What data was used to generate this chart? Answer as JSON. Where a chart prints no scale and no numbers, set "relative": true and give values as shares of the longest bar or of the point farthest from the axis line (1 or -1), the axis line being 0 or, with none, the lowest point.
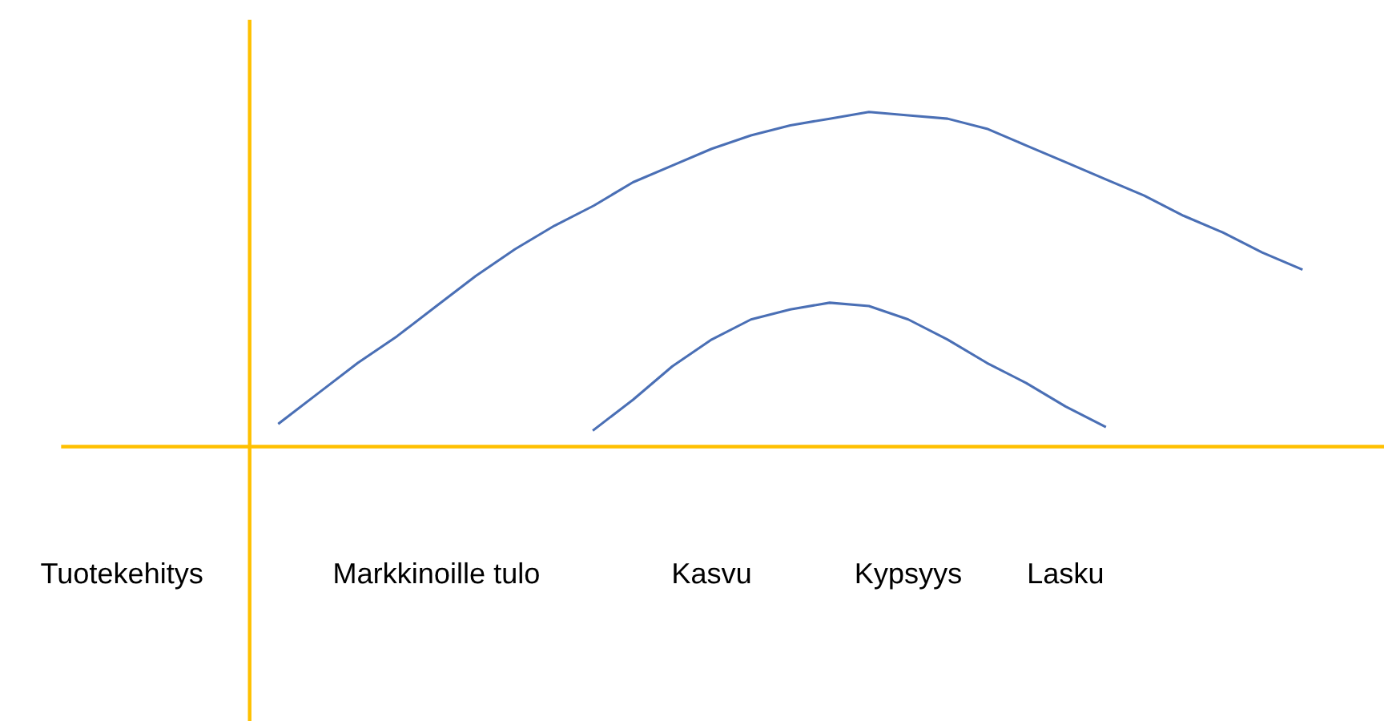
{
  "chart_data": {
    "type": "line",
    "relative": true,
    "categories": [
      "Tuotekehitys",
      null,
      null,
      null,
      null,
      null,
      null,
      null,
      "Markkinoille tulo",
      null,
      null,
      null,
      null,
      null,
      null,
      "Kasvu",
      null,
      null,
      null,
      null,
      "Kypsyys",
      null,
      null,
      null,
      "Lasku",
      null,
      null,
      null,
      null,
      null,
      null
    ],
    "grid": false,
    "marker": "none",
    "line_style": "solid",
    "series": [
      {
        "color": "#4a6fb5",
        "values": [
          null,
          null,
          null,
          null,
          0.07,
          0.16,
          0.25,
          0.33,
          0.42,
          0.51,
          0.59,
          0.66,
          0.72,
          0.79,
          0.84,
          0.89,
          0.93,
          0.96,
          0.98,
          1.0,
          0.99,
          0.98,
          0.95,
          0.9,
          0.85,
          0.8,
          0.75,
          0.69,
          0.64,
          0.58,
          0.53
        ]
      },
      {
        "color": "#4a6fb5",
        "values": [
          null,
          null,
          null,
          null,
          null,
          null,
          null,
          null,
          null,
          null,
          null,
          null,
          0.05,
          0.14,
          0.24,
          0.32,
          0.38,
          0.41,
          0.43,
          0.42,
          0.38,
          0.32,
          0.25,
          0.19,
          0.12,
          0.06,
          null,
          null,
          null,
          null,
          null
        ]
      }
    ]
  }
}
